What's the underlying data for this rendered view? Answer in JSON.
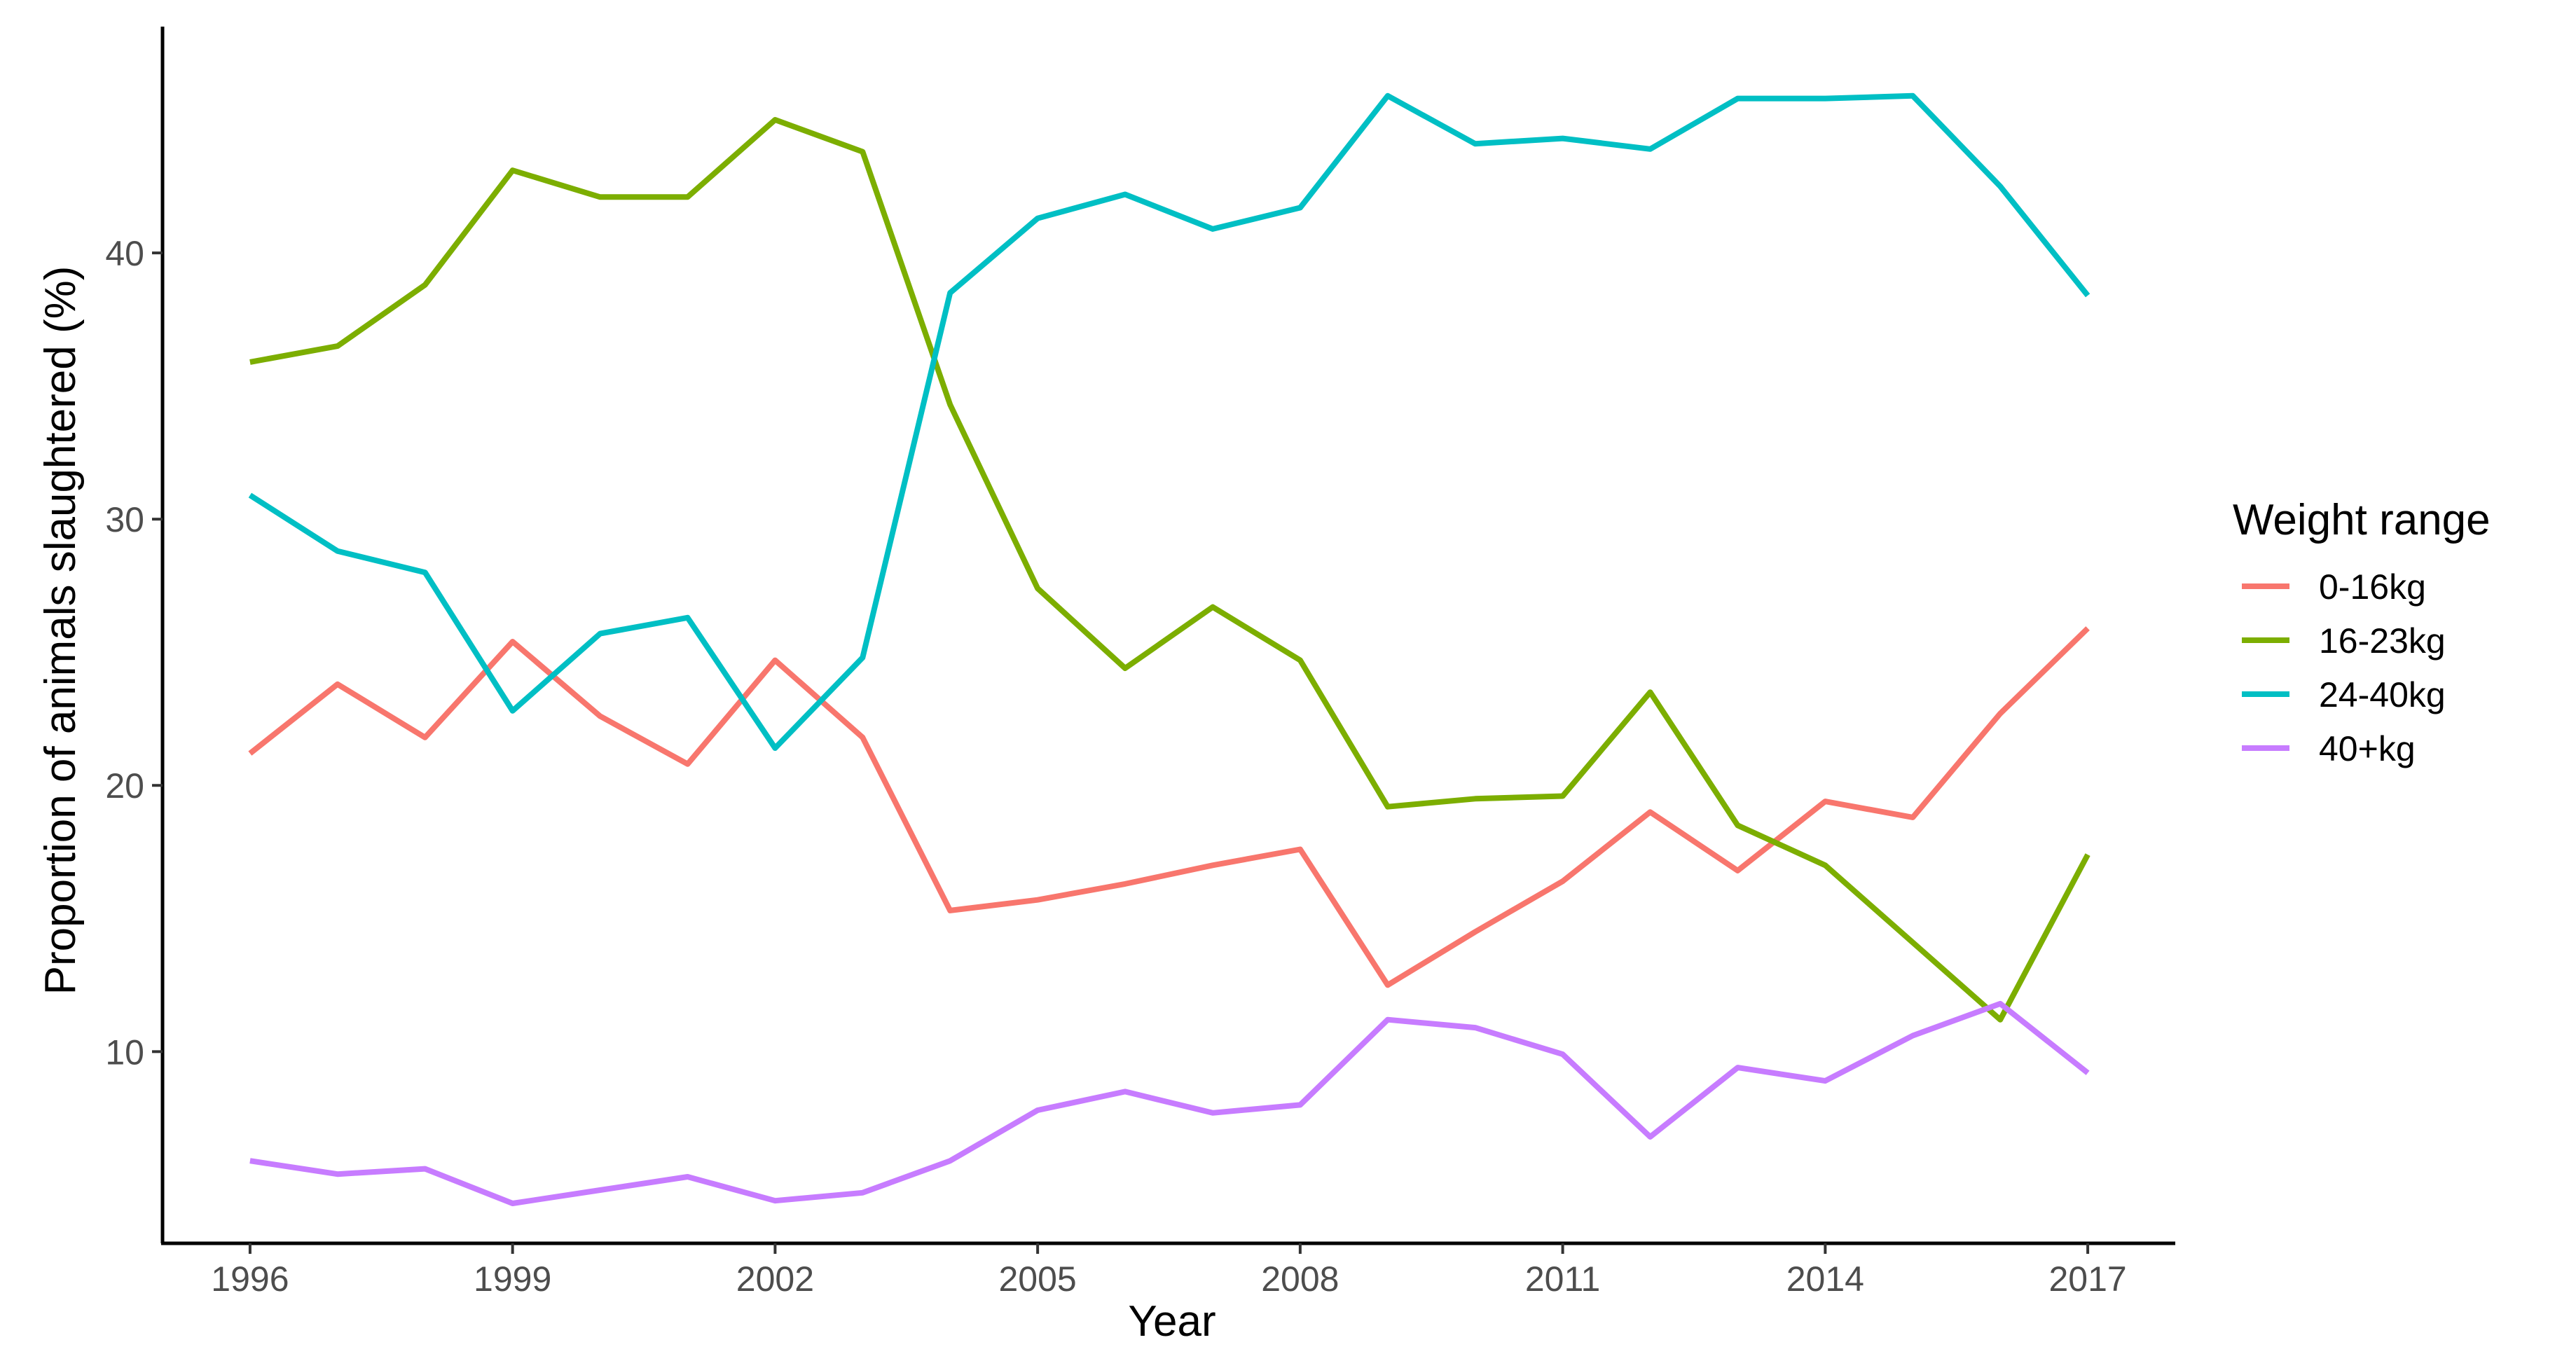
{
  "chart_data": {
    "type": "line",
    "title": "",
    "xlabel": "Year",
    "ylabel": "Proportion of animals slaughtered (%)",
    "x": [
      1996,
      1997,
      1998,
      1999,
      2000,
      2001,
      2002,
      2003,
      2004,
      2005,
      2006,
      2007,
      2008,
      2009,
      2010,
      2011,
      2012,
      2013,
      2014,
      2015,
      2016,
      2017
    ],
    "xlim": [
      1995,
      2018
    ],
    "ylim": [
      2.8,
      48.5
    ],
    "x_ticks": [
      1996,
      1999,
      2002,
      2005,
      2008,
      2011,
      2014,
      2017
    ],
    "y_ticks": [
      10,
      20,
      30,
      40
    ],
    "grid": false,
    "legend_title": "Weight range",
    "legend_position": "right",
    "series": [
      {
        "name": "0-16kg",
        "color": "#F8766D",
        "values": [
          21.2,
          23.8,
          21.8,
          25.4,
          22.6,
          20.8,
          24.7,
          21.8,
          15.3,
          15.7,
          16.3,
          17.0,
          17.6,
          12.5,
          14.5,
          16.4,
          19.0,
          16.8,
          19.4,
          18.8,
          22.7,
          25.9
        ]
      },
      {
        "name": "16-23kg",
        "color": "#7CAE00",
        "values": [
          35.9,
          36.5,
          38.8,
          43.1,
          42.1,
          42.1,
          45.0,
          43.8,
          34.3,
          27.4,
          24.4,
          26.7,
          24.7,
          19.2,
          19.5,
          19.6,
          23.5,
          18.5,
          17.0,
          14.1,
          11.2,
          17.4
        ]
      },
      {
        "name": "24-40kg",
        "color": "#00BFC4",
        "values": [
          30.9,
          28.8,
          28.0,
          22.8,
          25.7,
          26.3,
          21.4,
          24.8,
          38.5,
          41.3,
          42.2,
          40.9,
          41.7,
          45.9,
          44.1,
          44.3,
          43.9,
          45.8,
          45.8,
          45.9,
          42.5,
          38.4
        ]
      },
      {
        "name": "40+kg",
        "color": "#C77CFF",
        "values": [
          5.9,
          5.4,
          5.6,
          4.3,
          4.8,
          5.3,
          4.4,
          4.7,
          5.9,
          7.8,
          8.5,
          7.7,
          8.0,
          11.2,
          10.9,
          9.9,
          6.8,
          9.4,
          8.9,
          10.6,
          11.8,
          9.2
        ]
      }
    ]
  }
}
